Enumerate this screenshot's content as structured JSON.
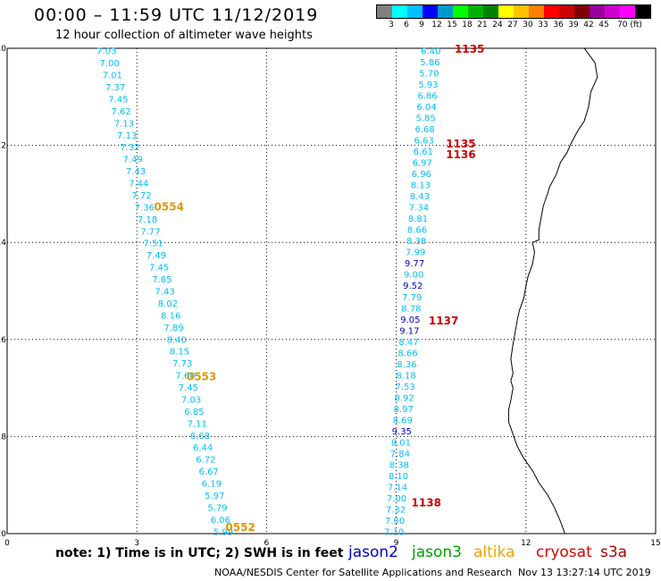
{
  "header": {
    "title": "00:00 – 11:59 UTC 11/12/2019",
    "subtitle": "12 hour collection of altimeter wave heights"
  },
  "legend": {
    "colors": [
      "#808080",
      "#00ffff",
      "#00bfff",
      "#0000ff",
      "#0099cc",
      "#00ff00",
      "#00b000",
      "#008000",
      "#ffff00",
      "#ffc000",
      "#ff8000",
      "#ff0000",
      "#cc0000",
      "#800000",
      "#990099",
      "#cc00cc",
      "#ff00ff",
      "#000000"
    ],
    "labels": [
      "3",
      "6",
      "9",
      "12",
      "15",
      "18",
      "21",
      "24",
      "27",
      "30",
      "33",
      "36",
      "39",
      "42",
      "45",
      "70 (ft)"
    ]
  },
  "chart_data": {
    "type": "map",
    "xlim": [
      0,
      15
    ],
    "ylim": [
      20,
      10
    ],
    "x_ticks": [
      "0",
      "3",
      "6",
      "9",
      "12",
      "15"
    ],
    "y_ticks": [
      "10",
      "12",
      "14",
      "16",
      "18",
      "20"
    ],
    "track_a": {
      "color": "#00bfff",
      "start_x": 2.3,
      "start_y": 10.05,
      "end_x": 5.0,
      "end_y": 19.95,
      "values": [
        "7.03",
        "7.00",
        "7.01",
        "7.37",
        "7.45",
        "7.62",
        "7.13",
        "7.13",
        "7.32",
        "7.49",
        "7.43",
        "7.44",
        "7.72",
        "7.36",
        "7.18",
        "7.77",
        "7.51",
        "7.49",
        "7.45",
        "7.65",
        "7.43",
        "8.02",
        "8.16",
        "7.89",
        "8.40",
        "8.15",
        "7.73",
        "7.60",
        "7.45",
        "7.03",
        "6.85",
        "7.11",
        "6.68",
        "6.44",
        "6.72",
        "6.67",
        "6.19",
        "5.97",
        "5.79",
        "6.06",
        "5.99"
      ]
    },
    "track_b": {
      "color": "#00bfff",
      "start_x": 9.8,
      "start_y": 10.05,
      "end_x": 8.95,
      "end_y": 19.95,
      "values": [
        "6.40",
        "5.86",
        "5.70",
        "5.93",
        "6.86",
        "6.04",
        "5.85",
        "6.68",
        "6.63",
        "6.61",
        "6.97",
        "6.96",
        "8.13",
        "8.43",
        "7.34",
        "8.81",
        "8.66",
        "8.38",
        "7.99",
        "9.77",
        "9.00",
        "9.52",
        "7.79",
        "8.78",
        "9.05",
        "9.17",
        "8.47",
        "8.66",
        "8.36",
        "8.18",
        "7.53",
        "8.92",
        "8.97",
        "8.69",
        "9.35",
        "8.01",
        "7.84",
        "8.38",
        "8.10",
        "7.14",
        "7.00",
        "7.32",
        "7.00",
        "7.10"
      ],
      "dark_blue": [
        "9.77",
        "9.52",
        "9.05",
        "9.17",
        "9.35"
      ]
    },
    "time_labels": [
      {
        "text": "1135",
        "x": 10.35,
        "y": 10.0,
        "color": "#cc0000"
      },
      {
        "text": "1135",
        "x": 10.15,
        "y": 11.95,
        "color": "#cc0000"
      },
      {
        "text": "1136",
        "x": 10.15,
        "y": 12.17,
        "color": "#cc0000"
      },
      {
        "text": "0554",
        "x": 3.4,
        "y": 13.25,
        "color": "#e69500"
      },
      {
        "text": "1137",
        "x": 9.75,
        "y": 15.6,
        "color": "#cc0000"
      },
      {
        "text": "0553",
        "x": 4.15,
        "y": 16.75,
        "color": "#e69500"
      },
      {
        "text": "1138",
        "x": 9.35,
        "y": 19.35,
        "color": "#cc0000"
      },
      {
        "text": "0552",
        "x": 5.05,
        "y": 19.85,
        "color": "#e69500"
      }
    ],
    "coastline": [
      [
        13.35,
        10.0
      ],
      [
        13.6,
        10.3
      ],
      [
        13.65,
        10.6
      ],
      [
        13.5,
        10.9
      ],
      [
        13.45,
        11.2
      ],
      [
        13.35,
        11.5
      ],
      [
        13.2,
        11.7
      ],
      [
        13.05,
        11.95
      ],
      [
        12.95,
        12.15
      ],
      [
        12.8,
        12.35
      ],
      [
        12.7,
        12.6
      ],
      [
        12.55,
        12.85
      ],
      [
        12.5,
        13.0
      ],
      [
        12.4,
        13.25
      ],
      [
        12.35,
        13.5
      ],
      [
        12.3,
        13.75
      ],
      [
        12.3,
        13.95
      ],
      [
        12.15,
        14.0
      ],
      [
        12.2,
        14.2
      ],
      [
        12.15,
        14.45
      ],
      [
        12.05,
        14.7
      ],
      [
        12.0,
        14.9
      ],
      [
        11.95,
        15.15
      ],
      [
        11.85,
        15.4
      ],
      [
        11.8,
        15.6
      ],
      [
        11.75,
        15.85
      ],
      [
        11.7,
        16.1
      ],
      [
        11.65,
        16.4
      ],
      [
        11.7,
        16.7
      ],
      [
        11.65,
        16.85
      ],
      [
        11.7,
        17.0
      ],
      [
        11.65,
        17.25
      ],
      [
        11.6,
        17.45
      ],
      [
        11.6,
        17.7
      ],
      [
        11.7,
        17.95
      ],
      [
        11.8,
        18.2
      ],
      [
        11.95,
        18.45
      ],
      [
        12.15,
        18.7
      ],
      [
        12.3,
        18.95
      ],
      [
        12.5,
        19.2
      ],
      [
        12.65,
        19.45
      ],
      [
        12.8,
        19.75
      ],
      [
        12.9,
        20.0
      ]
    ]
  },
  "footer": {
    "note": "note:  1) Time is in UTC;  2) SWH is in feet",
    "satellites": [
      {
        "name": "jason2",
        "color": "#0000cc"
      },
      {
        "name": "jason3",
        "color": "#00a000"
      },
      {
        "name": "altika",
        "color": "#f0a000"
      },
      {
        "name": "cryosat",
        "color": "#dd0000"
      },
      {
        "name": "s3a",
        "color": "#aa0000"
      }
    ],
    "credit": "NOAA/NESDIS Center for Satellite Applications and Research",
    "timestamp": "Nov 13 13:27:14 UTC 2019"
  }
}
